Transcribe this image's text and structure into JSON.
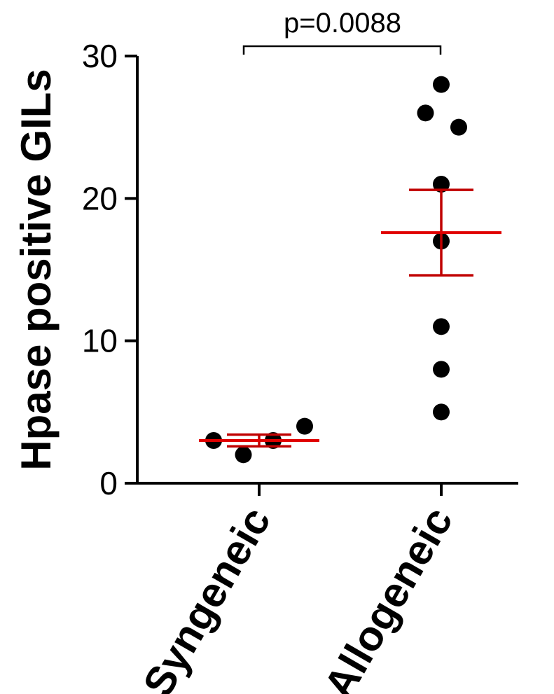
{
  "chart_data": {
    "type": "scatter",
    "ylabel": "Hpase positive GILs",
    "ylim": [
      0,
      30
    ],
    "yticks": [
      0,
      10,
      20,
      30
    ],
    "categories": [
      "Syngeneic",
      "Allogeneic"
    ],
    "groups": [
      {
        "category": "Syngeneic",
        "points": [
          {
            "offset": -0.26,
            "value": 3
          },
          {
            "offset": -0.09,
            "value": 2
          },
          {
            "offset": 0.08,
            "value": 3
          },
          {
            "offset": 0.26,
            "value": 4
          }
        ],
        "mean": 3.0,
        "sem": 0.41
      },
      {
        "category": "Allogeneic",
        "points": [
          {
            "offset": 0.0,
            "value": 28
          },
          {
            "offset": -0.09,
            "value": 26
          },
          {
            "offset": 0.1,
            "value": 25
          },
          {
            "offset": 0.0,
            "value": 21
          },
          {
            "offset": 0.0,
            "value": 17
          },
          {
            "offset": 0.0,
            "value": 11
          },
          {
            "offset": 0.0,
            "value": 8
          },
          {
            "offset": 0.0,
            "value": 5
          }
        ],
        "mean": 17.6,
        "sem": 3.0
      }
    ],
    "annotations": [
      {
        "text": "p=0.0088",
        "from": "Syngeneic",
        "to": "Allogeneic"
      }
    ],
    "colors": {
      "points": "#000000",
      "mean": "#e00000",
      "error": "#c00000"
    }
  }
}
